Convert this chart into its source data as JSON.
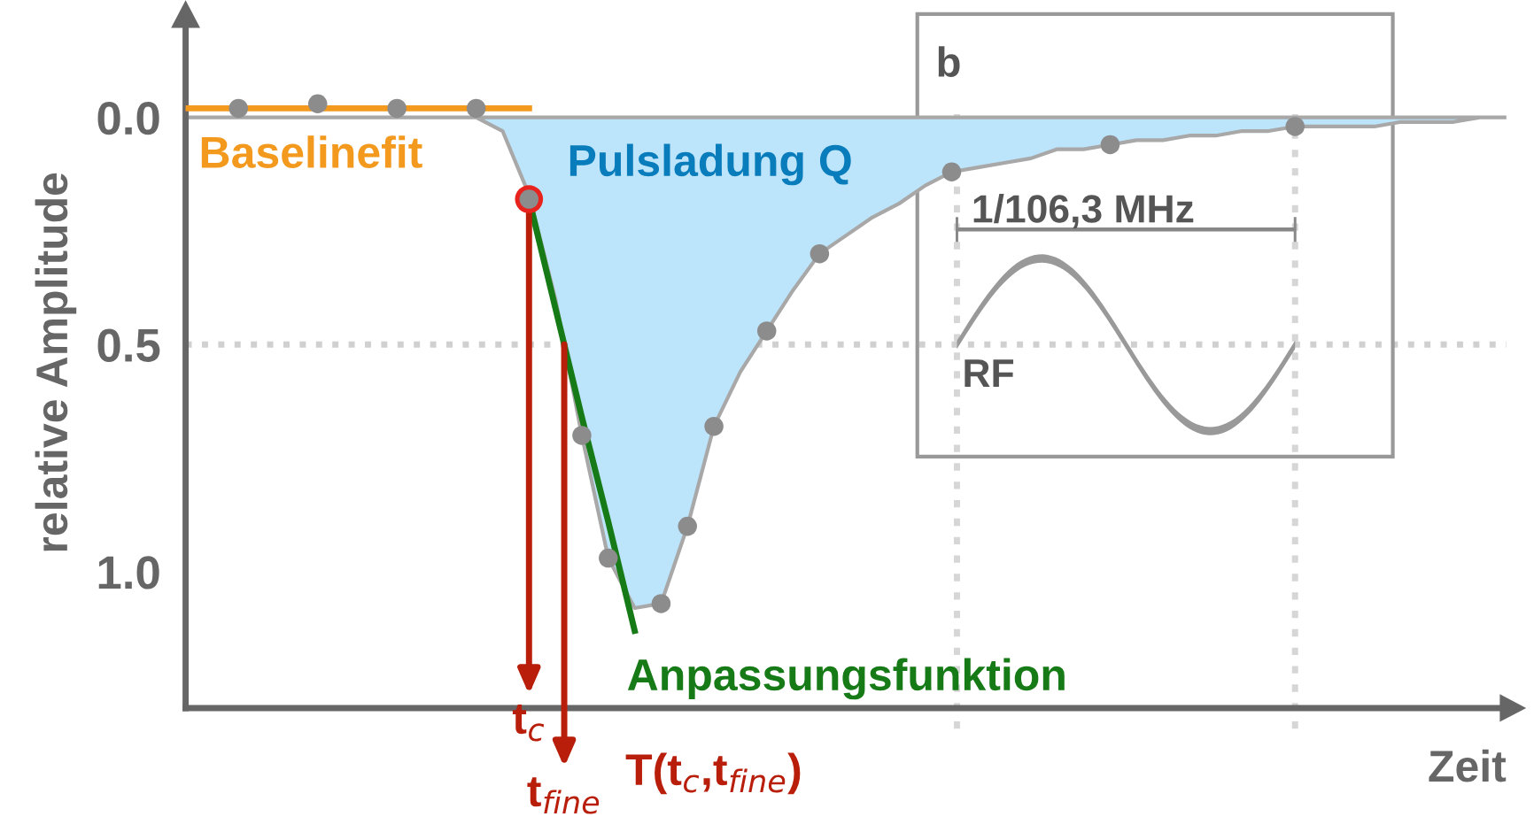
{
  "chart_data": {
    "type": "line",
    "ylabel": "relative Amplitude",
    "xlabel": "Zeit",
    "categories": [
      null,
      null,
      null,
      null,
      null,
      null,
      null,
      null,
      null,
      null,
      null,
      null,
      null,
      null,
      null,
      null,
      null,
      null,
      null,
      null,
      null,
      null,
      null,
      null,
      null,
      null,
      null,
      null,
      null,
      null,
      null,
      null,
      null,
      null,
      null,
      null,
      null,
      null,
      null,
      null,
      null,
      null,
      null,
      null,
      null,
      null,
      null,
      null,
      null,
      null,
      null
    ],
    "ylim": [
      1.3,
      -0.22
    ],
    "yticks": [
      {
        "value": 0.0,
        "label": "0.0"
      },
      {
        "value": 0.5,
        "label": "0.5"
      },
      {
        "value": 1.0,
        "label": "1.0"
      }
    ],
    "tick_labels": "y",
    "series": [
      {
        "name": "Pulsladung Q",
        "type": "area",
        "color": "#bce4fa",
        "values": [
          0,
          0,
          0,
          0,
          0,
          0,
          0,
          0,
          0,
          0,
          0,
          0,
          0.03,
          0.17,
          0.4,
          0.7,
          0.97,
          1.08,
          1.07,
          0.9,
          0.68,
          0.56,
          0.47,
          0.38,
          0.3,
          0.26,
          0.22,
          0.19,
          0.15,
          0.12,
          0.11,
          0.1,
          0.09,
          0.07,
          0.07,
          0.06,
          0.05,
          0.05,
          0.04,
          0.04,
          0.03,
          0.03,
          0.02,
          0.02,
          0.02,
          0.02,
          0.01,
          0.01,
          0.01,
          0,
          0
        ]
      },
      {
        "name": "Baselinefit",
        "color": "#f39a1e",
        "values": [
          -0.02,
          -0.02,
          -0.02,
          -0.02,
          -0.02,
          -0.02,
          -0.02,
          -0.02,
          -0.02,
          -0.02,
          -0.02,
          -0.02,
          -0.02,
          -0.02,
          null,
          null,
          null,
          null,
          null,
          null,
          null,
          null,
          null,
          null,
          null,
          null,
          null,
          null,
          null,
          null,
          null,
          null,
          null,
          null,
          null,
          null,
          null,
          null,
          null,
          null,
          null,
          null,
          null,
          null,
          null,
          null,
          null,
          null,
          null,
          null,
          null
        ]
      },
      {
        "name": "Anpassungsfunktion",
        "color": "#167a16",
        "values": [
          null,
          null,
          null,
          null,
          null,
          null,
          null,
          null,
          null,
          null,
          null,
          null,
          null,
          0.18,
          0.42,
          0.66,
          0.89,
          1.13,
          null,
          null,
          null,
          null,
          null,
          null,
          null,
          null,
          null,
          null,
          null,
          null,
          null,
          null,
          null,
          null,
          null,
          null,
          null,
          null,
          null,
          null,
          null,
          null,
          null,
          null,
          null,
          null,
          null,
          null,
          null,
          null,
          null
        ]
      },
      {
        "type": "scatter",
        "color": "#e8221c",
        "marker": "circle",
        "values": [
          null,
          null,
          null,
          null,
          null,
          null,
          null,
          null,
          null,
          null,
          null,
          null,
          null,
          0.18,
          null,
          null,
          null,
          null,
          null,
          null,
          null,
          null,
          null,
          null,
          null,
          null,
          null,
          null,
          null,
          null,
          null,
          null,
          null,
          null,
          null,
          null,
          null,
          null,
          null,
          null,
          null,
          null,
          null,
          null,
          null,
          null,
          null,
          null,
          null,
          null,
          null
        ]
      },
      {
        "type": "scatter",
        "color": "#8c8c8c",
        "marker": "circle",
        "values": [
          null,
          null,
          -0.02,
          null,
          null,
          -0.03,
          null,
          null,
          -0.02,
          null,
          null,
          -0.02,
          null,
          0.18,
          null,
          0.7,
          0.97,
          null,
          1.07,
          0.9,
          0.68,
          null,
          0.47,
          null,
          0.3,
          null,
          null,
          null,
          null,
          0.12,
          null,
          null,
          null,
          null,
          null,
          0.06,
          null,
          null,
          null,
          null,
          null,
          null,
          0.02,
          null,
          null,
          null,
          null,
          null,
          null,
          null,
          null
        ]
      }
    ],
    "ref_lines": [
      {
        "axis": "y",
        "value": 0.5,
        "color": "#d0d0d0",
        "line_style": "dotted"
      }
    ],
    "annotations": [
      "t$_{c}$",
      "t$_{fine}$",
      "T(t$_{c}$,t$_{fine}$)",
      "b",
      "1/106,3 MHz",
      "RF"
    ]
  }
}
